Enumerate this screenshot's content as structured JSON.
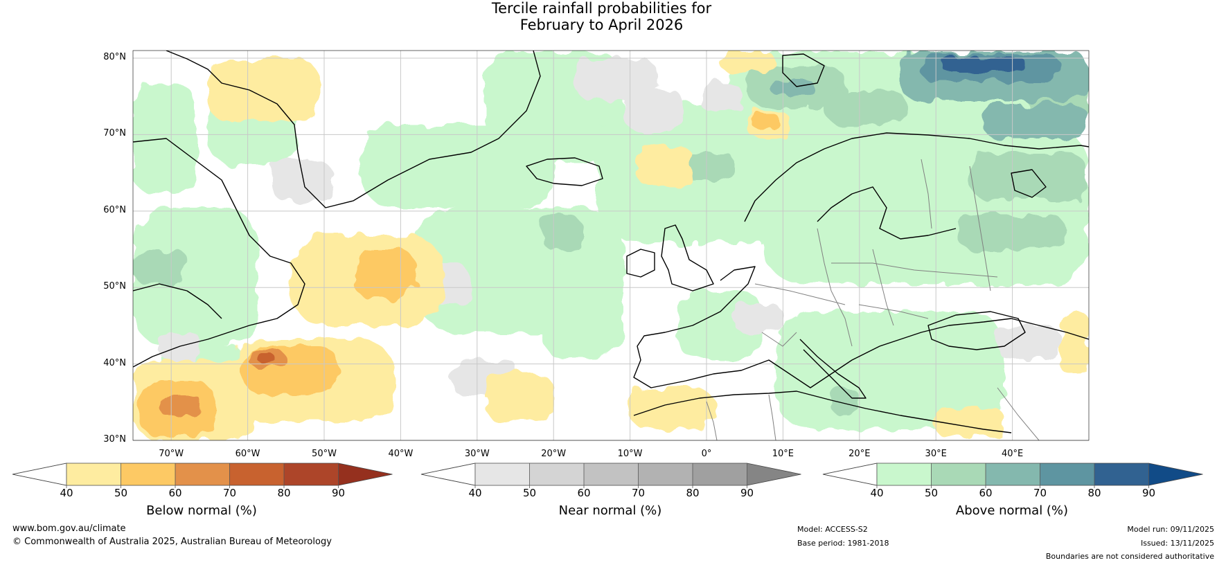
{
  "title": {
    "line1": "Tercile rainfall probabilities for",
    "line2": "February to April 2026"
  },
  "map": {
    "extent": {
      "lon_min": -75,
      "lon_max": 50,
      "lat_min": 30,
      "lat_max": 81
    },
    "lat_labels": [
      "80°N",
      "70°N",
      "60°N",
      "50°N",
      "40°N",
      "30°N"
    ],
    "lat_values": [
      80,
      70,
      60,
      50,
      40,
      30
    ],
    "lon_labels": [
      "70°W",
      "60°W",
      "50°W",
      "40°W",
      "30°W",
      "20°W",
      "10°W",
      "0°",
      "10°E",
      "20°E",
      "30°E",
      "40°E"
    ],
    "lon_values": [
      -70,
      -60,
      -50,
      -40,
      -30,
      -20,
      -10,
      0,
      10,
      20,
      30,
      40
    ],
    "coastline_color": "#000000",
    "border_color": "#808080",
    "grid_color": "#c8c8c8"
  },
  "colorbars": {
    "below": {
      "label": "Below normal (%)",
      "ticks": [
        "40",
        "50",
        "60",
        "70",
        "80",
        "90"
      ],
      "colors": [
        "#ffffff",
        "#feeca0",
        "#fdc964",
        "#e3914a",
        "#c8622f",
        "#ad4529",
        "#95301e"
      ]
    },
    "near": {
      "label": "Near normal (%)",
      "ticks": [
        "40",
        "50",
        "60",
        "70",
        "80",
        "90"
      ],
      "colors": [
        "#ffffff",
        "#e6e6e6",
        "#d4d4d4",
        "#c2c2c2",
        "#b2b2b2",
        "#a0a0a0",
        "#858585"
      ]
    },
    "above": {
      "label": "Above normal (%)",
      "ticks": [
        "40",
        "50",
        "60",
        "70",
        "80",
        "90"
      ],
      "colors": [
        "#ffffff",
        "#c9f7cd",
        "#a9d9b6",
        "#84b8ae",
        "#5e95a1",
        "#316291",
        "#114b87"
      ]
    }
  },
  "footer": {
    "website": "www.bom.gov.au/climate",
    "copyright": "© Commonwealth of Australia 2025, Australian Bureau of Meteorology",
    "model": "Model: ACCESS-S2",
    "base_period": "Base period: 1981-2018",
    "model_run": "Model run: 09/11/2025",
    "issued": "Issued: 13/11/2025",
    "disclaimer": "Boundaries are not considered authoritative"
  }
}
